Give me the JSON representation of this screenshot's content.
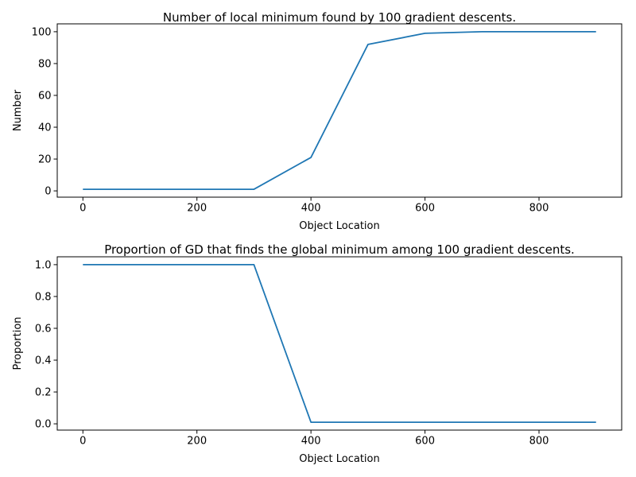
{
  "chart_data": [
    {
      "type": "line",
      "title": "Number of local minimum found by 100 gradient descents.",
      "xlabel": "Object Location",
      "ylabel": "Number",
      "x": [
        0,
        100,
        200,
        300,
        400,
        500,
        600,
        700,
        800,
        900
      ],
      "series": [
        {
          "values": [
            1,
            1,
            1,
            1,
            21,
            92,
            99,
            100,
            100,
            100
          ]
        }
      ],
      "xticks": [
        0,
        200,
        400,
        600,
        800
      ],
      "yticks": [
        0,
        20,
        40,
        60,
        80,
        100
      ],
      "xtick_labels": [
        "0",
        "200",
        "400",
        "600",
        "800"
      ],
      "ytick_labels": [
        "0",
        "20",
        "40",
        "60",
        "80",
        "100"
      ],
      "xlim": [
        -45,
        945
      ],
      "ylim": [
        -3.95,
        104.95
      ],
      "grid": false,
      "line_color": "#1f77b4"
    },
    {
      "type": "line",
      "title": "Proportion of GD that finds the global minimum among 100 gradient descents.",
      "xlabel": "Object Location",
      "ylabel": "Proportion",
      "x": [
        0,
        100,
        200,
        300,
        400,
        500,
        600,
        700,
        800,
        900
      ],
      "series": [
        {
          "values": [
            1.0,
            1.0,
            1.0,
            1.0,
            0.01,
            0.01,
            0.01,
            0.01,
            0.01,
            0.01
          ]
        }
      ],
      "xticks": [
        0,
        200,
        400,
        600,
        800
      ],
      "yticks": [
        0.0,
        0.2,
        0.4,
        0.6,
        0.8,
        1.0
      ],
      "xtick_labels": [
        "0",
        "200",
        "400",
        "600",
        "800"
      ],
      "ytick_labels": [
        "0.0",
        "0.2",
        "0.4",
        "0.6",
        "0.8",
        "1.0"
      ],
      "xlim": [
        -45,
        945
      ],
      "ylim": [
        -0.0395,
        1.0495
      ],
      "grid": false,
      "line_color": "#1f77b4"
    }
  ]
}
